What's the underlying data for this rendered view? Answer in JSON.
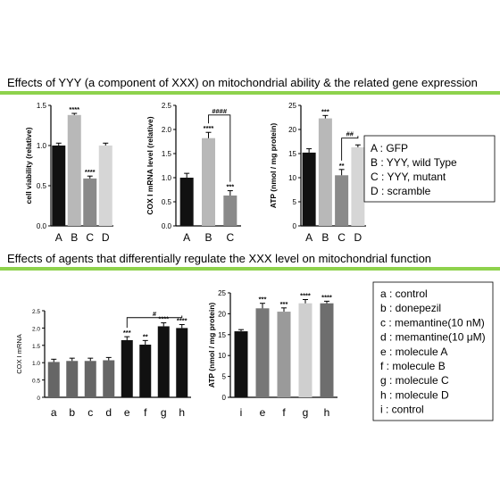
{
  "section_titles": {
    "top": "Effects of YYY (a component of XXX) on mitochondrial ability & the related gene expression",
    "bottom": "Effects of agents that differentially regulate the XXX level on mitochondrial function"
  },
  "colors": {
    "divider_green": "#8ed24c",
    "bar_black": "#111111",
    "bar_gray_light": "#b8b8b8",
    "bar_gray_mid": "#8a8a8a",
    "bar_gray_lighter": "#d6d6d6",
    "bar_gray_dark": "#666666"
  },
  "legends": {
    "top": [
      "A : GFP",
      "B : YYY, wild Type",
      "C : YYY, mutant",
      "D : scramble"
    ],
    "bottom": [
      "a : control",
      "b : donepezil",
      "c : memantine(10 nM)",
      "d : memantine(10 μM)",
      "e : molecule A",
      "f : molecule B",
      "g : molecule C",
      "h : molecule D",
      "i : control"
    ]
  },
  "chart_data": [
    {
      "type": "bar",
      "ylabel": "cell viability (relative)",
      "ylim": [
        0,
        1.5
      ],
      "yticks": [
        "0.0",
        "0.5",
        "1.0",
        "1.5"
      ],
      "categories": [
        "A",
        "B",
        "C",
        "D"
      ],
      "values": [
        1.0,
        1.38,
        0.59,
        1.0
      ],
      "errors": [
        0.03,
        0.02,
        0.03,
        0.03
      ],
      "colors": [
        "#111111",
        "#b8b8b8",
        "#8a8a8a",
        "#d6d6d6"
      ],
      "significance": [
        "",
        "****",
        "****",
        ""
      ],
      "brackets": []
    },
    {
      "type": "bar",
      "ylabel": "COX I mRNA level (relative)",
      "ylim": [
        0,
        2.5
      ],
      "yticks": [
        "0.0",
        "0.5",
        "1.0",
        "1.5",
        "2.0",
        "2.5"
      ],
      "categories": [
        "A",
        "B",
        "C"
      ],
      "values": [
        1.0,
        1.82,
        0.63
      ],
      "errors": [
        0.09,
        0.12,
        0.1
      ],
      "colors": [
        "#111111",
        "#b8b8b8",
        "#8a8a8a"
      ],
      "significance": [
        "",
        "****",
        "***"
      ],
      "brackets": [
        {
          "from": 1,
          "to": 2,
          "label": "####",
          "y": 2.3
        }
      ]
    },
    {
      "type": "bar",
      "ylabel": "ATP (nmol / mg protein)",
      "ylim": [
        0,
        25
      ],
      "yticks": [
        "0",
        "5",
        "10",
        "15",
        "20",
        "25"
      ],
      "categories": [
        "A",
        "B",
        "C",
        "D"
      ],
      "values": [
        15.2,
        22.3,
        10.5,
        16.3
      ],
      "errors": [
        0.8,
        0.6,
        1.2,
        0.5
      ],
      "colors": [
        "#111111",
        "#b8b8b8",
        "#8a8a8a",
        "#d6d6d6"
      ],
      "significance": [
        "",
        "***",
        "**",
        ""
      ],
      "brackets": [
        {
          "from": 2,
          "to": 3,
          "label": "##",
          "y": 18.2
        }
      ]
    },
    {
      "type": "bar",
      "ylabel": "COX I mRNA",
      "ylim": [
        0,
        2.5
      ],
      "yticks": [
        "0",
        "0.5",
        "1.0",
        "1.5",
        "2.0",
        "2.5"
      ],
      "categories": [
        "a",
        "b",
        "c",
        "d",
        "e",
        "f",
        "g",
        "h"
      ],
      "values": [
        1.02,
        1.05,
        1.05,
        1.07,
        1.65,
        1.52,
        2.05,
        2.0
      ],
      "errors": [
        0.08,
        0.08,
        0.08,
        0.08,
        0.1,
        0.12,
        0.1,
        0.1
      ],
      "colors": [
        "#666666",
        "#666666",
        "#666666",
        "#666666",
        "#111111",
        "#111111",
        "#111111",
        "#111111"
      ],
      "significance": [
        "",
        "",
        "",
        "",
        "***",
        "**",
        "****",
        "****"
      ],
      "brackets": [
        {
          "from": 4,
          "to": 7,
          "label": "#",
          "y": 2.3
        }
      ]
    },
    {
      "type": "bar",
      "ylabel": "ATP (nmol / mg protein)",
      "ylim": [
        0,
        25
      ],
      "yticks": [
        "0",
        "5",
        "10",
        "15",
        "20",
        "25"
      ],
      "categories": [
        "i",
        "e",
        "f",
        "g",
        "h"
      ],
      "values": [
        15.8,
        21.3,
        20.5,
        22.5,
        22.5
      ],
      "errors": [
        0.4,
        1.2,
        0.9,
        0.9,
        0.5
      ],
      "colors": [
        "#111111",
        "#777777",
        "#9a9a9a",
        "#cfcfcf",
        "#6e6e6e"
      ],
      "significance": [
        "",
        "***",
        "***",
        "****",
        "****"
      ],
      "brackets": []
    }
  ]
}
